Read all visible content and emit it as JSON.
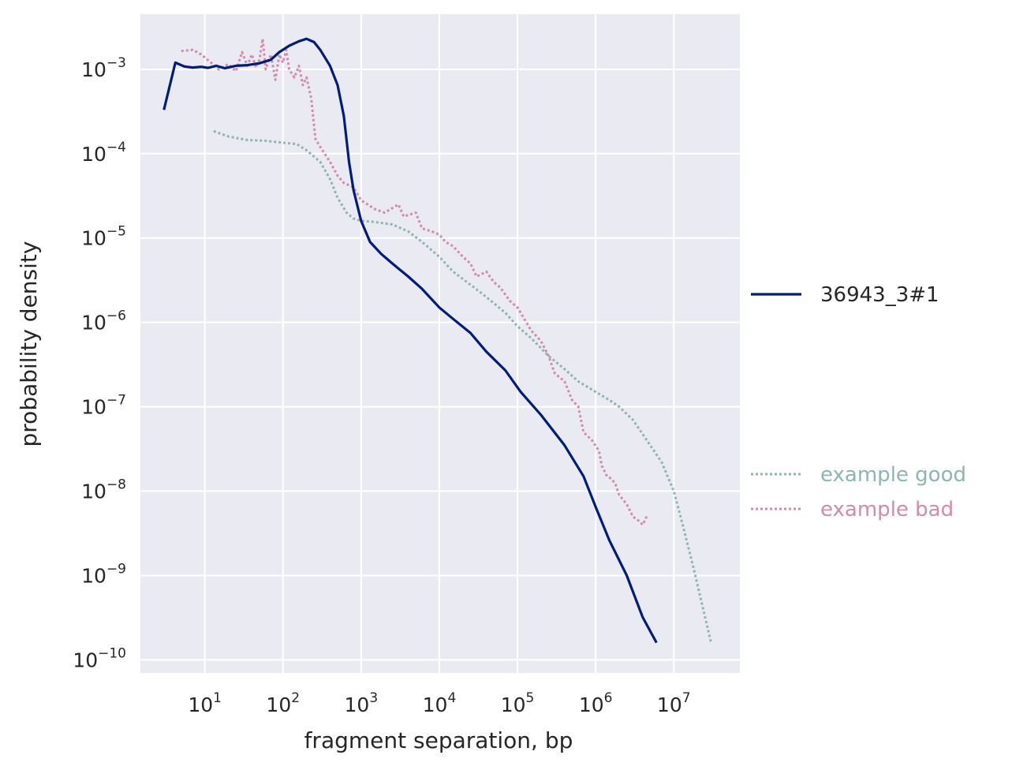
{
  "chart_data": {
    "type": "line",
    "xlabel": "fragment separation, bp",
    "ylabel": "probability density",
    "xscale": "log",
    "yscale": "log",
    "xlim": [
      1.5,
      70000000
    ],
    "ylim": [
      7e-11,
      0.0045
    ],
    "grid": true,
    "background": "#EAEAF2",
    "xticks": [
      {
        "base": "10",
        "exp": "1",
        "value": 10
      },
      {
        "base": "10",
        "exp": "2",
        "value": 100
      },
      {
        "base": "10",
        "exp": "3",
        "value": 1000
      },
      {
        "base": "10",
        "exp": "4",
        "value": 10000
      },
      {
        "base": "10",
        "exp": "5",
        "value": 100000
      },
      {
        "base": "10",
        "exp": "6",
        "value": 1000000
      },
      {
        "base": "10",
        "exp": "7",
        "value": 10000000
      }
    ],
    "yticks": [
      {
        "base": "10",
        "exp": "−3",
        "value": 0.001
      },
      {
        "base": "10",
        "exp": "−4",
        "value": 0.0001
      },
      {
        "base": "10",
        "exp": "−5",
        "value": 1e-05
      },
      {
        "base": "10",
        "exp": "−6",
        "value": 1e-06
      },
      {
        "base": "10",
        "exp": "−7",
        "value": 1e-07
      },
      {
        "base": "10",
        "exp": "−8",
        "value": 1e-08
      },
      {
        "base": "10",
        "exp": "−9",
        "value": 1e-09
      },
      {
        "base": "10",
        "exp": "−10",
        "value": 1e-10
      }
    ],
    "legend": {
      "placement": "right, outside",
      "groups": [
        {
          "entries": [
            {
              "series": 0
            }
          ]
        },
        {
          "entries": [
            {
              "series": 1
            },
            {
              "series": 2
            }
          ]
        }
      ]
    },
    "series": [
      {
        "name": "36943_3#1",
        "color": "#001C7F",
        "style": "solid",
        "points": [
          [
            3,
            0.00033
          ],
          [
            4.2,
            0.0012
          ],
          [
            5.5,
            0.00108
          ],
          [
            7,
            0.00105
          ],
          [
            9,
            0.00107
          ],
          [
            11,
            0.00104
          ],
          [
            14,
            0.0011
          ],
          [
            18,
            0.00103
          ],
          [
            25,
            0.0011
          ],
          [
            35,
            0.00112
          ],
          [
            50,
            0.00118
          ],
          [
            70,
            0.0013
          ],
          [
            90,
            0.0016
          ],
          [
            120,
            0.0019
          ],
          [
            160,
            0.00215
          ],
          [
            200,
            0.0023
          ],
          [
            250,
            0.0021
          ],
          [
            300,
            0.0017
          ],
          [
            400,
            0.0011
          ],
          [
            500,
            0.00065
          ],
          [
            600,
            0.00028
          ],
          [
            700,
            8e-05
          ],
          [
            800,
            3.7e-05
          ],
          [
            1000,
            1.6e-05
          ],
          [
            1300,
            9e-06
          ],
          [
            1800,
            6.5e-06
          ],
          [
            2500,
            5e-06
          ],
          [
            4000,
            3.5e-06
          ],
          [
            6000,
            2.5e-06
          ],
          [
            10000,
            1.5e-06
          ],
          [
            15000,
            1.1e-06
          ],
          [
            25000,
            7.5e-07
          ],
          [
            40000,
            4.5e-07
          ],
          [
            70000,
            2.7e-07
          ],
          [
            110000,
            1.5e-07
          ],
          [
            200000,
            8e-08
          ],
          [
            400000,
            3.5e-08
          ],
          [
            700000,
            1.5e-08
          ],
          [
            1000000,
            6.5e-09
          ],
          [
            1500000,
            2.6e-09
          ],
          [
            2500000,
            1e-09
          ],
          [
            4000000,
            3.2e-10
          ],
          [
            6000000,
            1.6e-10
          ]
        ]
      },
      {
        "name": "example good",
        "color": "#8DB5B1",
        "style": "dotted",
        "points": [
          [
            13,
            0.000185
          ],
          [
            20,
            0.00016
          ],
          [
            35,
            0.000145
          ],
          [
            60,
            0.000142
          ],
          [
            100,
            0.000135
          ],
          [
            150,
            0.00013
          ],
          [
            200,
            0.00011
          ],
          [
            300,
            8e-05
          ],
          [
            400,
            5e-05
          ],
          [
            500,
            3e-05
          ],
          [
            650,
            2e-05
          ],
          [
            800,
            1.7e-05
          ],
          [
            1000,
            1.6e-05
          ],
          [
            1500,
            1.55e-05
          ],
          [
            2500,
            1.45e-05
          ],
          [
            4000,
            1.2e-05
          ],
          [
            6000,
            9e-06
          ],
          [
            10000,
            6e-06
          ],
          [
            15000,
            4e-06
          ],
          [
            25000,
            2.8e-06
          ],
          [
            40000,
            2e-06
          ],
          [
            70000,
            1.3e-06
          ],
          [
            100000,
            9e-07
          ],
          [
            150000,
            6.5e-07
          ],
          [
            250000,
            4e-07
          ],
          [
            400000,
            2.8e-07
          ],
          [
            600000,
            2e-07
          ],
          [
            1000000,
            1.5e-07
          ],
          [
            1500000,
            1.2e-07
          ],
          [
            2000000,
            1e-07
          ],
          [
            3000000,
            7e-08
          ],
          [
            5000000,
            3.5e-08
          ],
          [
            7000000,
            2.2e-08
          ],
          [
            10000000,
            1e-08
          ],
          [
            13000000,
            4e-09
          ],
          [
            18000000,
            1.2e-09
          ],
          [
            30000000,
            1.6e-10
          ]
        ]
      },
      {
        "name": "example bad",
        "color": "#D28BA9",
        "style": "dotted",
        "points": [
          [
            5,
            0.00165
          ],
          [
            7,
            0.0017
          ],
          [
            9,
            0.0015
          ],
          [
            12,
            0.0012
          ],
          [
            15,
            0.001
          ],
          [
            20,
            0.00115
          ],
          [
            25,
            0.00095
          ],
          [
            30,
            0.0016
          ],
          [
            35,
            0.0011
          ],
          [
            40,
            0.0015
          ],
          [
            45,
            0.00105
          ],
          [
            50,
            0.0013
          ],
          [
            55,
            0.0023
          ],
          [
            60,
            0.001
          ],
          [
            70,
            0.0015
          ],
          [
            80,
            0.00075
          ],
          [
            90,
            0.0015
          ],
          [
            100,
            0.0012
          ],
          [
            110,
            0.0017
          ],
          [
            120,
            0.001
          ],
          [
            140,
            0.0008
          ],
          [
            160,
            0.0011
          ],
          [
            180,
            0.00065
          ],
          [
            200,
            0.0008
          ],
          [
            230,
            0.00045
          ],
          [
            260,
            0.00015
          ],
          [
            300,
            0.00012
          ],
          [
            400,
            8e-05
          ],
          [
            500,
            5.5e-05
          ],
          [
            600,
            4.5e-05
          ],
          [
            800,
            4e-05
          ],
          [
            1000,
            2.8e-05
          ],
          [
            1500,
            2.2e-05
          ],
          [
            2000,
            2e-05
          ],
          [
            3000,
            2.5e-05
          ],
          [
            3500,
            1.8e-05
          ],
          [
            5000,
            2e-05
          ],
          [
            6000,
            1.3e-05
          ],
          [
            8000,
            1.2e-05
          ],
          [
            10000,
            1.1e-05
          ],
          [
            12000,
            9e-06
          ],
          [
            15000,
            8e-06
          ],
          [
            20000,
            6e-06
          ],
          [
            25000,
            5e-06
          ],
          [
            30000,
            3.5e-06
          ],
          [
            40000,
            4e-06
          ],
          [
            50000,
            3e-06
          ],
          [
            60000,
            2.6e-06
          ],
          [
            80000,
            1.8e-06
          ],
          [
            100000,
            1.5e-06
          ],
          [
            150000,
            8e-07
          ],
          [
            200000,
            6e-07
          ],
          [
            250000,
            4e-07
          ],
          [
            300000,
            2.5e-07
          ],
          [
            400000,
            2e-07
          ],
          [
            500000,
            1.2e-07
          ],
          [
            600000,
            1e-07
          ],
          [
            700000,
            5e-08
          ],
          [
            900000,
            4e-08
          ],
          [
            1100000,
            3e-08
          ],
          [
            1200000,
            2e-08
          ],
          [
            1400000,
            1.5e-08
          ],
          [
            1600000,
            1.4e-08
          ],
          [
            1800000,
            1.2e-08
          ],
          [
            2000000,
            9e-09
          ],
          [
            2500000,
            7e-09
          ],
          [
            3000000,
            5e-09
          ],
          [
            3500000,
            4.5e-09
          ],
          [
            4000000,
            4e-09
          ],
          [
            4500000,
            5e-09
          ]
        ]
      }
    ]
  }
}
